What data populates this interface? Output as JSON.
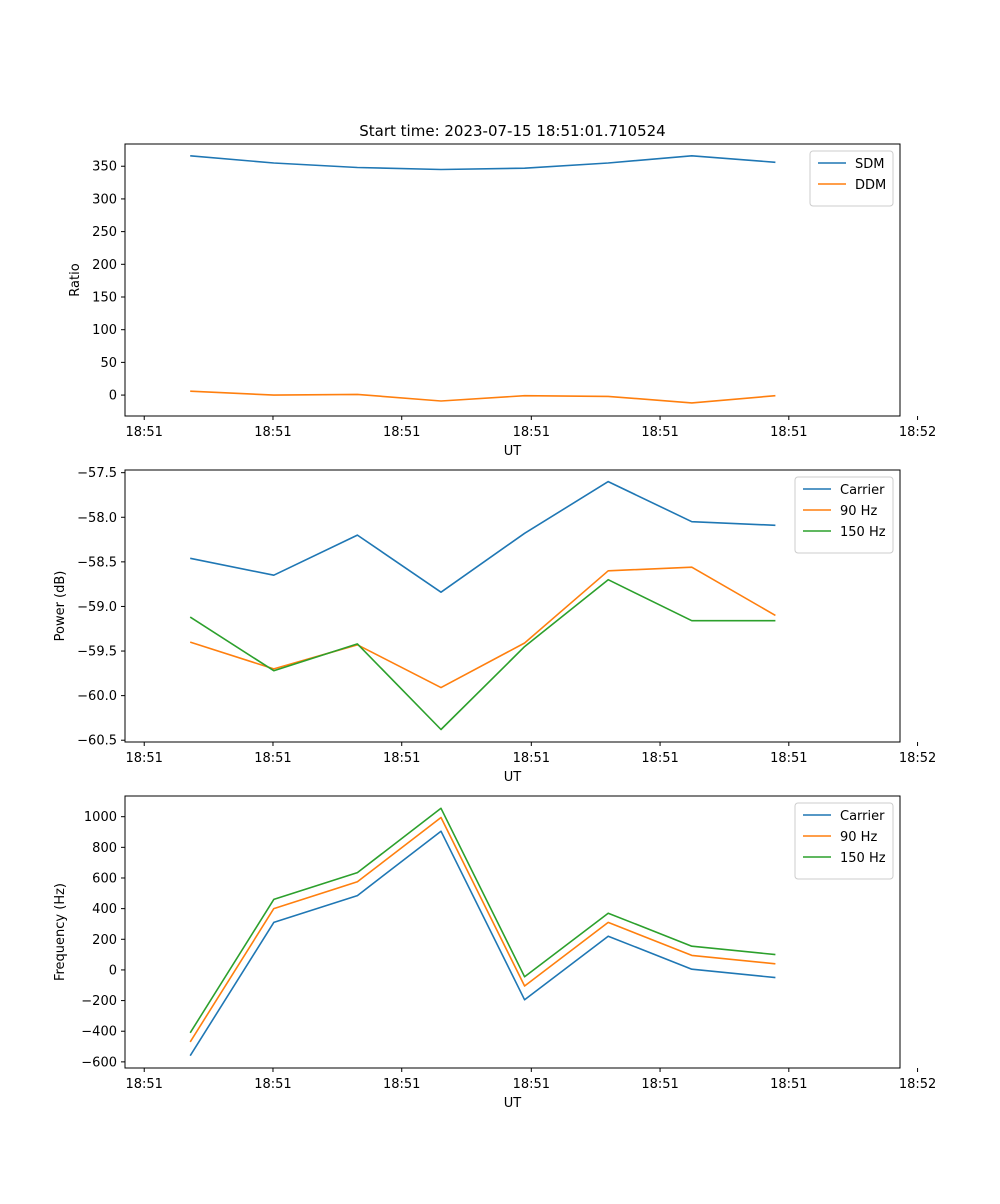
{
  "figure_title": "Start time: 2023-07-15 18:51:01.710524",
  "colors": {
    "blue": "#1f77b4",
    "orange": "#ff7f0e",
    "green": "#2ca02c"
  },
  "chart_data": [
    {
      "type": "line",
      "title": "Start time: 2023-07-15 18:51:01.710524",
      "xlabel": "UT",
      "ylabel": "Ratio",
      "x": [
        1,
        2,
        3,
        4,
        5,
        6,
        7,
        8
      ],
      "xlim": [
        0.22,
        9.49
      ],
      "xticks": [
        0.45,
        1.99,
        3.53,
        5.08,
        6.62,
        8.16,
        9.7
      ],
      "xtick_labels": [
        "18:51",
        "18:51",
        "18:51",
        "18:51",
        "18:51",
        "18:51",
        "18:52"
      ],
      "ylim": [
        -32,
        384
      ],
      "yticks": [
        0,
        50,
        100,
        150,
        200,
        250,
        300,
        350
      ],
      "ytick_labels": [
        "0",
        "50",
        "100",
        "150",
        "200",
        "250",
        "300",
        "350"
      ],
      "legend_position": "top-right",
      "series": [
        {
          "name": "SDM",
          "color": "#1f77b4",
          "values": [
            366,
            355,
            348,
            345,
            347,
            355,
            366,
            356
          ]
        },
        {
          "name": "DDM",
          "color": "#ff7f0e",
          "values": [
            6,
            0,
            1,
            -9,
            -1,
            -2,
            -12,
            -1
          ]
        }
      ]
    },
    {
      "type": "line",
      "title": "",
      "xlabel": "UT",
      "ylabel": "Power (dB)",
      "x": [
        1,
        2,
        3,
        4,
        5,
        6,
        7,
        8
      ],
      "xlim": [
        0.22,
        9.49
      ],
      "xticks": [
        0.45,
        1.99,
        3.53,
        5.08,
        6.62,
        8.16,
        9.7
      ],
      "xtick_labels": [
        "18:51",
        "18:51",
        "18:51",
        "18:51",
        "18:51",
        "18:51",
        "18:52"
      ],
      "ylim": [
        -60.52,
        -57.47
      ],
      "yticks": [
        -60.5,
        -60.0,
        -59.5,
        -59.0,
        -58.5,
        -58.0,
        -57.5
      ],
      "ytick_labels": [
        "−60.5",
        "−60.0",
        "−59.5",
        "−59.0",
        "−58.5",
        "−58.0",
        "−57.5"
      ],
      "legend_position": "top-right",
      "series": [
        {
          "name": "Carrier",
          "color": "#1f77b4",
          "values": [
            -58.46,
            -58.65,
            -58.2,
            -58.84,
            -58.18,
            -57.6,
            -58.05,
            -58.09
          ]
        },
        {
          "name": "90 Hz",
          "color": "#ff7f0e",
          "values": [
            -59.4,
            -59.7,
            -59.43,
            -59.91,
            -59.41,
            -58.6,
            -58.56,
            -59.1
          ]
        },
        {
          "name": "150 Hz",
          "color": "#2ca02c",
          "values": [
            -59.12,
            -59.72,
            -59.42,
            -60.38,
            -59.45,
            -58.7,
            -59.16,
            -59.16
          ]
        }
      ]
    },
    {
      "type": "line",
      "title": "",
      "xlabel": "UT",
      "ylabel": "Frequency (Hz)",
      "x": [
        1,
        2,
        3,
        4,
        5,
        6,
        7,
        8
      ],
      "xlim": [
        0.22,
        9.49
      ],
      "xticks": [
        0.45,
        1.99,
        3.53,
        5.08,
        6.62,
        8.16,
        9.7
      ],
      "xtick_labels": [
        "18:51",
        "18:51",
        "18:51",
        "18:51",
        "18:51",
        "18:51",
        "18:52"
      ],
      "ylim": [
        -640,
        1135
      ],
      "yticks": [
        -600,
        -400,
        -200,
        0,
        200,
        400,
        600,
        800,
        1000
      ],
      "ytick_labels": [
        "−600",
        "−400",
        "−200",
        "0",
        "200",
        "400",
        "600",
        "800",
        "1000"
      ],
      "legend_position": "top-right",
      "series": [
        {
          "name": "Carrier",
          "color": "#1f77b4",
          "values": [
            -560,
            310,
            485,
            905,
            -195,
            220,
            5,
            -50
          ]
        },
        {
          "name": "90 Hz",
          "color": "#ff7f0e",
          "values": [
            -470,
            400,
            575,
            995,
            -105,
            310,
            95,
            40
          ]
        },
        {
          "name": "150 Hz",
          "color": "#2ca02c",
          "values": [
            -410,
            460,
            635,
            1055,
            -45,
            370,
            155,
            100
          ]
        }
      ]
    }
  ]
}
